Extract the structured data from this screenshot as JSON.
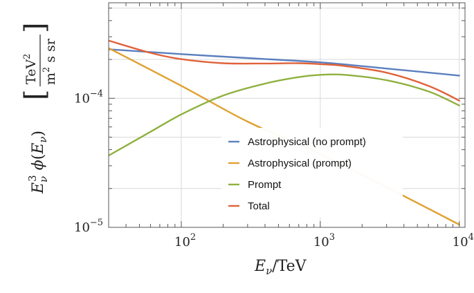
{
  "chart_data": {
    "type": "line",
    "title": "",
    "xlabel": "E_ν / TeV",
    "ylabel": "E_ν³ φ(E_ν)  [TeV² / (m² s sr)]",
    "xscale": "log",
    "yscale": "log",
    "xlim": [
      30,
      11000
    ],
    "ylim": [
      1e-05,
      0.00055
    ],
    "x_ticks": [
      {
        "value": 100,
        "base": "10",
        "exp": "2"
      },
      {
        "value": 1000,
        "base": "10",
        "exp": "3"
      },
      {
        "value": 10000,
        "base": "10",
        "exp": "4"
      }
    ],
    "y_ticks": [
      {
        "value": 1e-05,
        "base": "10",
        "exp": "−5"
      },
      {
        "value": 0.0001,
        "base": "10",
        "exp": "−4"
      }
    ],
    "grid": true,
    "legend_position": "center-right",
    "series": [
      {
        "name": "Astrophysical (no prompt)",
        "color": "#5b7fbf",
        "x": [
          30,
          100,
          300,
          1000,
          3000,
          10000
        ],
        "y": [
          0.00024,
          0.00022,
          0.000205,
          0.00019,
          0.00017,
          0.00015
        ]
      },
      {
        "name": "Astrophysical (prompt)",
        "color": "#e0a030",
        "x": [
          30,
          100,
          300,
          1000,
          3000,
          10000
        ],
        "y": [
          0.000245,
          0.000125,
          6.6e-05,
          3.7e-05,
          2.05e-05,
          1.05e-05
        ]
      },
      {
        "name": "Prompt",
        "color": "#8fb03e",
        "x": [
          30,
          60,
          100,
          200,
          400,
          700,
          1000,
          1500,
          3000,
          6000,
          10000
        ],
        "y": [
          3.6e-05,
          5.5e-05,
          7.5e-05,
          0.000105,
          0.00013,
          0.000146,
          0.000152,
          0.000152,
          0.000138,
          0.000113,
          8.8e-05
        ]
      },
      {
        "name": "Total",
        "color": "#e0623a",
        "x": [
          30,
          60,
          100,
          200,
          400,
          700,
          1000,
          1500,
          3000,
          6000,
          10000
        ],
        "y": [
          0.00028,
          0.000225,
          0.000201,
          0.000187,
          0.000186,
          0.000187,
          0.000184,
          0.000178,
          0.000158,
          0.000125,
          9.6e-05
        ]
      }
    ]
  }
}
